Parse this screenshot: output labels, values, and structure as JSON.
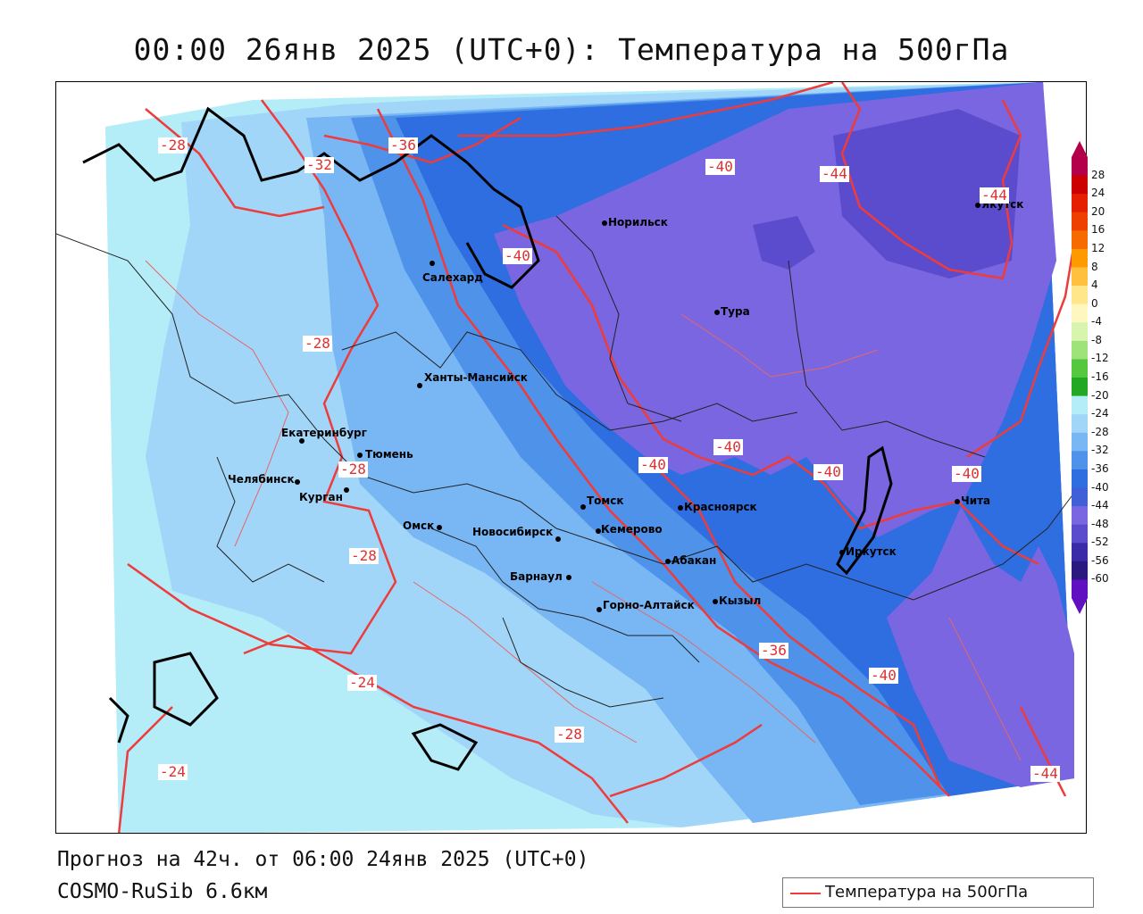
{
  "title": "00:00 26янв 2025 (UTC+0): Температура на 500гПа",
  "footer": {
    "forecast": "Прогноз на 42ч. от 06:00 24янв 2025 (UTC+0)",
    "model": "COSMO-RuSib 6.6км"
  },
  "legend": {
    "label": "Температура на 500гПа",
    "line_color": "#ee3b3b"
  },
  "colorbar": {
    "ticks": [
      "28",
      "24",
      "20",
      "16",
      "12",
      "8",
      "4",
      "0",
      "-4",
      "-8",
      "-12",
      "-16",
      "-20",
      "-24",
      "-28",
      "-32",
      "-36",
      "-40",
      "-44",
      "-48",
      "-52",
      "-56",
      "-60"
    ],
    "colors": [
      "#b4004b",
      "#cc0000",
      "#e52000",
      "#ee4000",
      "#f66a00",
      "#ff9900",
      "#ffc040",
      "#ffe68a",
      "#fff7c0",
      "#d8f5b0",
      "#9ee27a",
      "#55c840",
      "#22a822",
      "#b4ecf7",
      "#a2d6f8",
      "#78b6f4",
      "#4e92ea",
      "#2e6ee0",
      "#4060d8",
      "#7a66e0",
      "#5b4cce",
      "#3a2ca8",
      "#2a1a80",
      "#6010c0"
    ]
  },
  "cities": [
    {
      "name": "Норильск"
    },
    {
      "name": "Якутск"
    },
    {
      "name": "Салехард"
    },
    {
      "name": "Тура"
    },
    {
      "name": "Ханты-Мансийск"
    },
    {
      "name": "Екатеринбург"
    },
    {
      "name": "Тюмень"
    },
    {
      "name": "Челябинск"
    },
    {
      "name": "Курган"
    },
    {
      "name": "Омск"
    },
    {
      "name": "Новосибирск"
    },
    {
      "name": "Томск"
    },
    {
      "name": "Кемерово"
    },
    {
      "name": "Красноярск"
    },
    {
      "name": "Абакан"
    },
    {
      "name": "Барнаул"
    },
    {
      "name": "Горно-Алтайск"
    },
    {
      "name": "Кызыл"
    },
    {
      "name": "Иркутск"
    },
    {
      "name": "Чита"
    }
  ],
  "contour_labels": [
    {
      "text": "-28"
    },
    {
      "text": "-32"
    },
    {
      "text": "-36"
    },
    {
      "text": "-40"
    },
    {
      "text": "-44"
    },
    {
      "text": "-44"
    },
    {
      "text": "-40"
    },
    {
      "text": "-28"
    },
    {
      "text": "-28"
    },
    {
      "text": "-40"
    },
    {
      "text": "-40"
    },
    {
      "text": "-40"
    },
    {
      "text": "-40"
    },
    {
      "text": "-28"
    },
    {
      "text": "-24"
    },
    {
      "text": "-36"
    },
    {
      "text": "-40"
    },
    {
      "text": "-28"
    },
    {
      "text": "-24"
    },
    {
      "text": "-44"
    }
  ]
}
